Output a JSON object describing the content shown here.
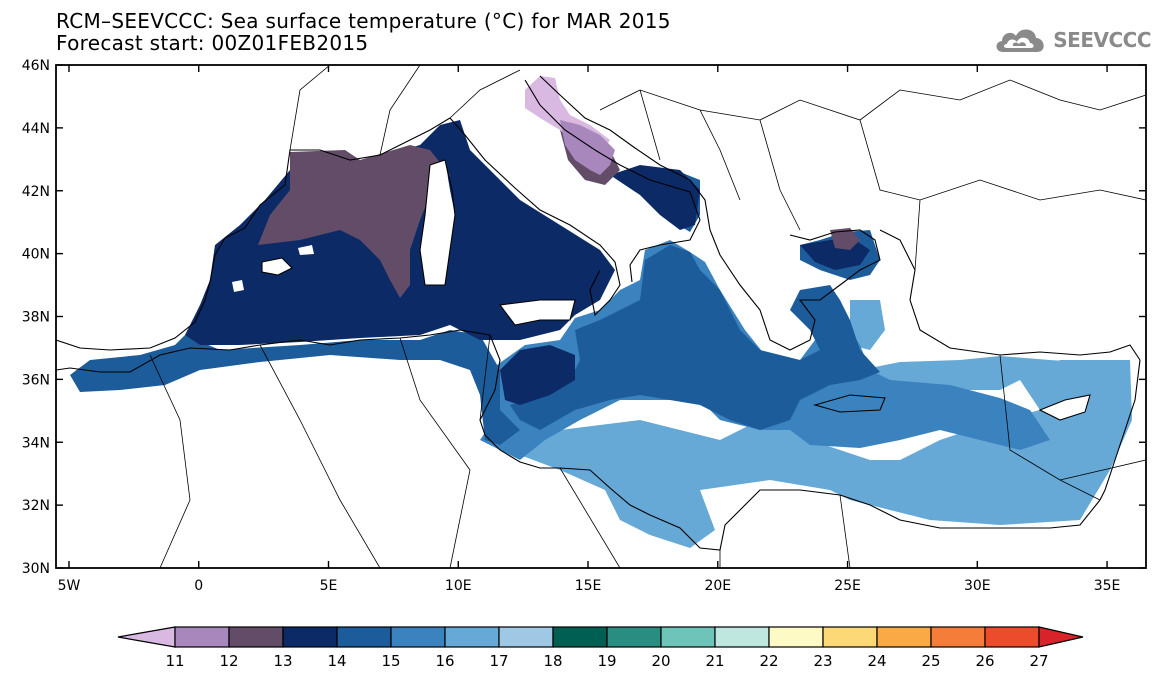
{
  "title": {
    "line1": "RCM–SEEVCCC: Sea surface temperature (°C) for MAR 2015",
    "line2": "Forecast start: 00Z01FEB2015"
  },
  "logo": {
    "text": "SEEVCCC",
    "icon": "cloud-icon",
    "color": "#8a8a8a"
  },
  "map": {
    "lat_labels": [
      "46N",
      "44N",
      "42N",
      "40N",
      "38N",
      "36N",
      "34N",
      "32N",
      "30N"
    ],
    "lon_labels": [
      "5W",
      "0",
      "5E",
      "10E",
      "15E",
      "20E",
      "25E",
      "30E",
      "35E"
    ],
    "lat_range": [
      30,
      46
    ],
    "lon_range": [
      -5.5,
      36.5
    ]
  },
  "colorbar": {
    "labels": [
      "11",
      "12",
      "13",
      "14",
      "15",
      "16",
      "17",
      "18",
      "19",
      "20",
      "21",
      "22",
      "23",
      "24",
      "25",
      "26",
      "27"
    ],
    "low_color": "#d9b8e2",
    "high_color": "#d9232a",
    "colors": [
      "#a887bd",
      "#624c68",
      "#0c2a66",
      "#1c5c9b",
      "#3b83bf",
      "#66a8d6",
      "#9ec8e3",
      "#005f53",
      "#2a8d82",
      "#6ec4b8",
      "#c0e6e0",
      "#fefac5",
      "#fcd877",
      "#f9aa46",
      "#f47e39",
      "#ec4b2c"
    ]
  }
}
